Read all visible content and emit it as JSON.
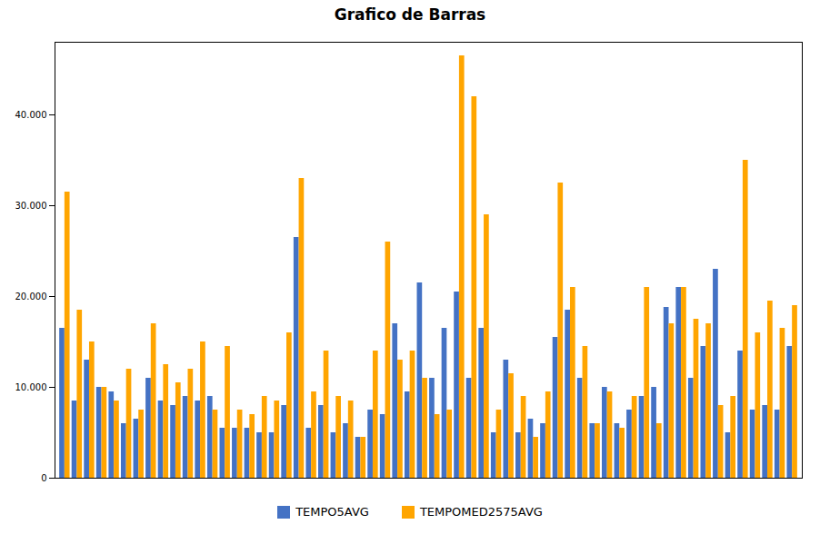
{
  "chart_data": {
    "type": "bar",
    "title": "Grafico de Barras",
    "categories": [
      null,
      null,
      null,
      null,
      null,
      null,
      null,
      null,
      null,
      null,
      null,
      null,
      null,
      null,
      null,
      null,
      null,
      null,
      null,
      null,
      null,
      null,
      null,
      null,
      null,
      null,
      null,
      null,
      null,
      null,
      null,
      null,
      null,
      null,
      null,
      null,
      null,
      null,
      null,
      null,
      null,
      null,
      null,
      null,
      null,
      null,
      null,
      null,
      null,
      null,
      null,
      null,
      null,
      null,
      null,
      null,
      null,
      null,
      null,
      null
    ],
    "series": [
      {
        "name": "TEMPO5AVG",
        "color": "#4472C4",
        "values": [
          16500,
          8500,
          13000,
          10000,
          9500,
          6000,
          6500,
          11000,
          8500,
          8000,
          9000,
          8500,
          9000,
          5500,
          5500,
          5500,
          5000,
          5000,
          8000,
          26500,
          5500,
          8000,
          5000,
          6000,
          4500,
          7500,
          7000,
          17000,
          9500,
          21500,
          11000,
          16500,
          20500,
          11000,
          16500,
          5000,
          13000,
          5000,
          6500,
          6000,
          15500,
          18500,
          11000,
          6000,
          10000,
          6000,
          7500,
          9000,
          10000,
          18800,
          21000,
          11000,
          14500,
          23000,
          5000,
          14000,
          7500,
          8000,
          7500,
          14500
        ]
      },
      {
        "name": "TEMPOMED2575AVG",
        "color": "#FFA500",
        "values": [
          31500,
          18500,
          15000,
          10000,
          8500,
          12000,
          7500,
          17000,
          12500,
          10500,
          12000,
          15000,
          7500,
          14500,
          7500,
          7000,
          9000,
          8500,
          16000,
          33000,
          9500,
          14000,
          9000,
          8500,
          4500,
          14000,
          26000,
          13000,
          14000,
          11000,
          7000,
          7500,
          46500,
          42000,
          29000,
          7500,
          11500,
          9000,
          4500,
          9500,
          32500,
          21000,
          14500,
          6000,
          9500,
          5500,
          9000,
          21000,
          6000,
          17000,
          21000,
          17500,
          17000,
          8000,
          9000,
          35000,
          16000,
          19500,
          16500,
          19000
        ]
      }
    ],
    "ylim": [
      0,
      48000
    ],
    "yticks": [
      0,
      {
        "value": 10000,
        "label": "10.000"
      },
      {
        "value": 20000,
        "label": "20.000"
      },
      {
        "value": 30000,
        "label": "30.000"
      },
      {
        "value": 40000,
        "label": "40.000"
      }
    ],
    "grid": false,
    "legend": "bottom",
    "tick_labels": "y"
  }
}
